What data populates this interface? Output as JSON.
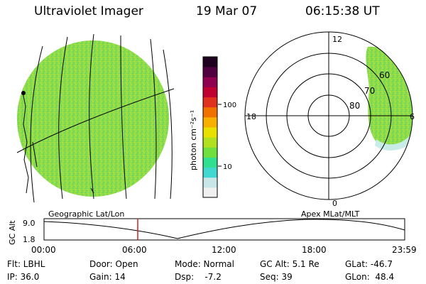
{
  "header": {
    "title": "Ultraviolet Imager",
    "date": "19 Mar 07",
    "time": "06:15:38 UT"
  },
  "colorbar": {
    "label": "photon cm⁻²s⁻¹",
    "ticks": [
      "100",
      "10"
    ],
    "colors": [
      "#f0f0f0",
      "#c8e6e8",
      "#40d8d0",
      "#30e090",
      "#70e040",
      "#b0e020",
      "#e8e000",
      "#f8b000",
      "#f07000",
      "#e03020",
      "#c00030",
      "#900050",
      "#500040",
      "#200020"
    ]
  },
  "polar": {
    "mlt_labels": [
      "12",
      "18",
      "6",
      "0"
    ],
    "lat_labels": [
      "60",
      "70",
      "80"
    ]
  },
  "altitude_panel": {
    "left_title": "Geographic Lat/Lon",
    "right_title": "Apex MLat/MLT",
    "y_label": "GC Alt",
    "y_ticks": [
      "9.0",
      "1.8"
    ],
    "x_ticks": [
      "00:00",
      "06:00",
      "12:00",
      "18:00",
      "23:59"
    ],
    "marker_color": "#d02020"
  },
  "info": {
    "row1": [
      "Flt: LBHL",
      "Door: Open",
      "Mode: Normal",
      "GC Alt: 5.1 Re",
      "GLat: -46.7"
    ],
    "row2": [
      "IP: 36.0",
      "Gain: 14",
      "Dsp:    -7.2",
      "Seq: 39",
      "GLon:  48.4"
    ]
  }
}
